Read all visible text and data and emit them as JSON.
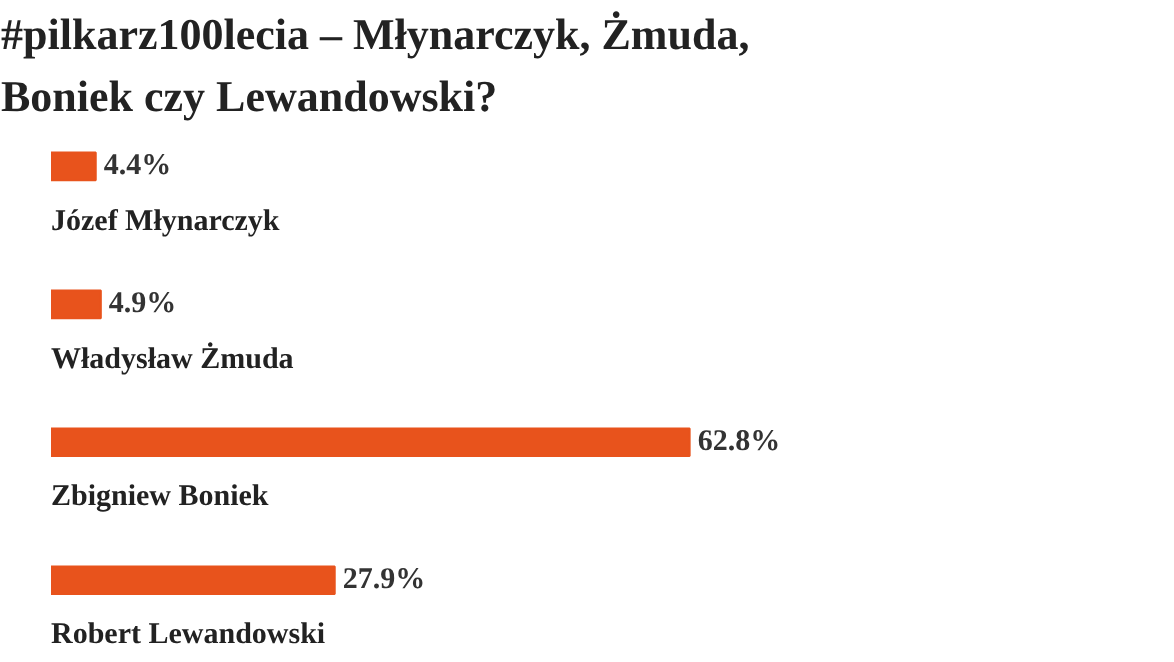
{
  "chart_data": {
    "type": "bar",
    "orientation": "horizontal",
    "title": "#pilkarz100lecia – Młynarczyk, Żmuda, Boniek czy Lewandowski?",
    "categories": [
      "Józef Młynarczyk",
      "Władysław Żmuda",
      "Zbigniew Boniek",
      "Robert Lewandowski"
    ],
    "values": [
      4.4,
      4.9,
      62.8,
      27.9
    ],
    "value_labels": [
      "4.4%",
      "4.9%",
      "62.8%",
      "27.9%"
    ],
    "color": "#e8531c",
    "tick_labels": false,
    "grid": false
  }
}
